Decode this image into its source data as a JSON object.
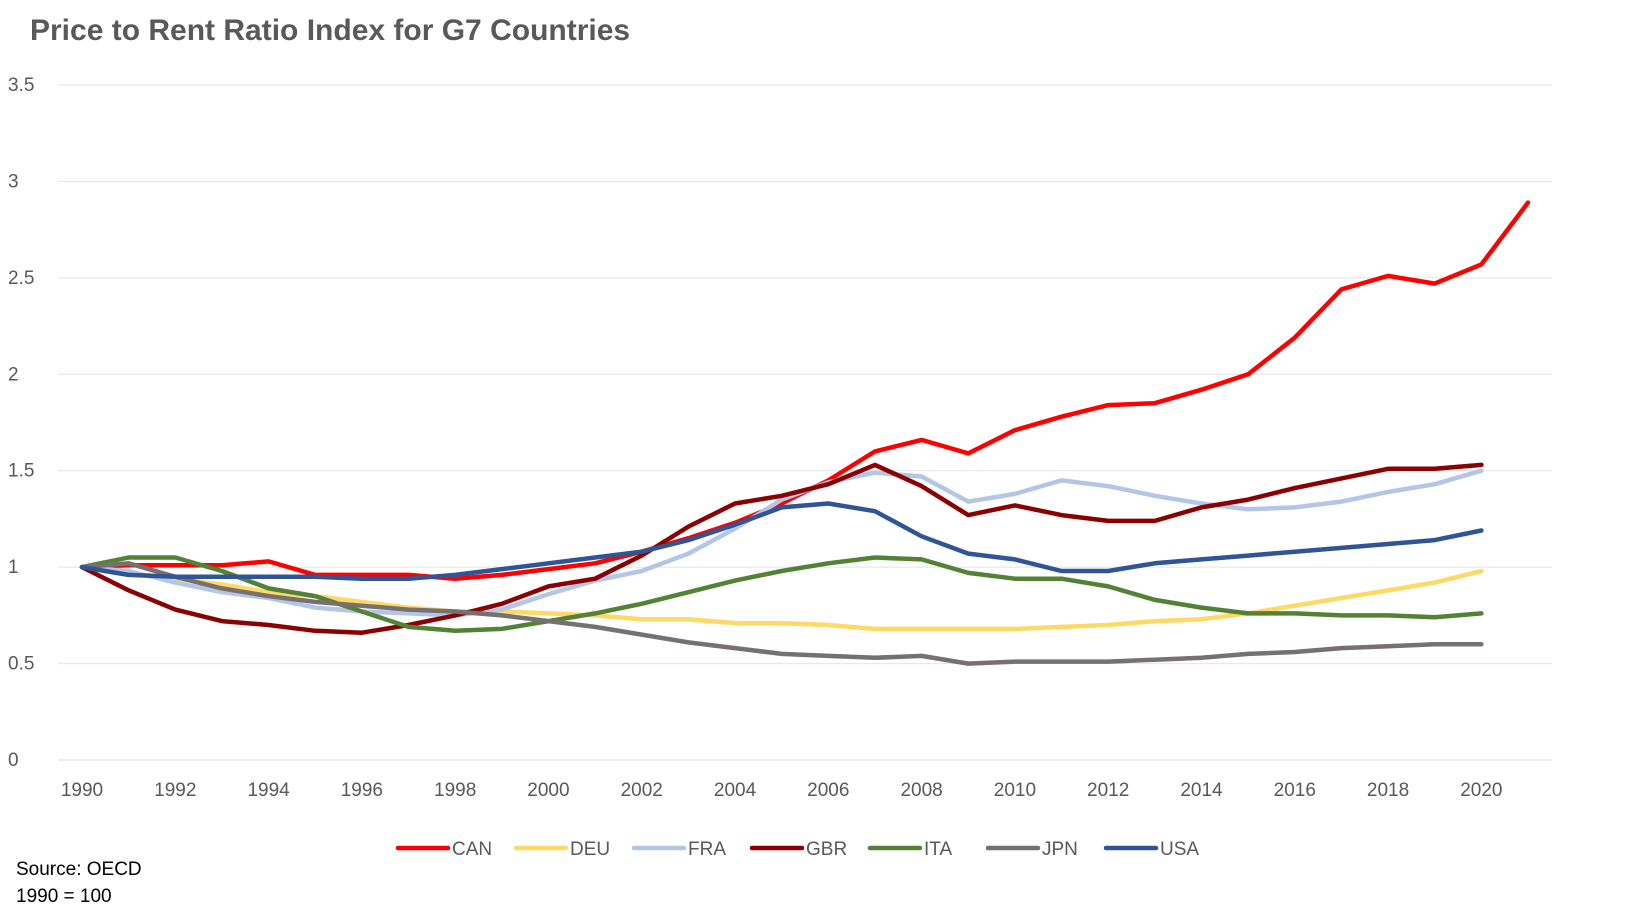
{
  "chart_data": {
    "type": "line",
    "title": "Price to Rent Ratio Index for G7 Countries",
    "xlabel": "",
    "ylabel": "",
    "ylim": [
      0,
      3.5
    ],
    "yticks": [
      0,
      0.5,
      1,
      1.5,
      2,
      2.5,
      3,
      3.5
    ],
    "ytick_labels": [
      "0",
      "0.5",
      "1",
      "1.5",
      "2",
      "2.5",
      "3",
      "3.5"
    ],
    "xlim": [
      1990,
      2021
    ],
    "xticks": [
      1990,
      1992,
      1994,
      1996,
      1998,
      2000,
      2002,
      2004,
      2006,
      2008,
      2010,
      2012,
      2014,
      2016,
      2018,
      2020
    ],
    "xtick_labels": [
      "1990",
      "1992",
      "1994",
      "1996",
      "1998",
      "2000",
      "2002",
      "2004",
      "2006",
      "2008",
      "2010",
      "2012",
      "2014",
      "2016",
      "2018",
      "2020"
    ],
    "grid": "horizontal",
    "legend_position": "bottom",
    "series": [
      {
        "name": "CAN",
        "color": "#FF0000",
        "start_year": 1990,
        "values": [
          1.0,
          1.01,
          1.01,
          1.01,
          1.03,
          0.96,
          0.96,
          0.96,
          0.94,
          0.96,
          0.99,
          1.02,
          1.08,
          1.15,
          1.23,
          1.33,
          1.45,
          1.6,
          1.66,
          1.59,
          1.71,
          1.78,
          1.84,
          1.85,
          1.92,
          2.0,
          2.19,
          2.44,
          2.51,
          2.47,
          2.57,
          2.89
        ]
      },
      {
        "name": "DEU",
        "color": "#FFD966",
        "start_year": 1990,
        "values": [
          1.0,
          0.97,
          0.94,
          0.91,
          0.87,
          0.85,
          0.82,
          0.79,
          0.77,
          0.77,
          0.76,
          0.75,
          0.73,
          0.73,
          0.71,
          0.71,
          0.7,
          0.68,
          0.68,
          0.68,
          0.68,
          0.69,
          0.7,
          0.72,
          0.73,
          0.76,
          0.8,
          0.84,
          0.88,
          0.92,
          0.98
        ]
      },
      {
        "name": "FRA",
        "color": "#B4C6E7",
        "start_year": 1990,
        "values": [
          1.0,
          0.98,
          0.92,
          0.87,
          0.84,
          0.79,
          0.77,
          0.76,
          0.75,
          0.78,
          0.86,
          0.93,
          0.98,
          1.07,
          1.2,
          1.35,
          1.44,
          1.49,
          1.47,
          1.34,
          1.38,
          1.45,
          1.42,
          1.37,
          1.33,
          1.3,
          1.31,
          1.34,
          1.39,
          1.43,
          1.5
        ]
      },
      {
        "name": "GBR",
        "color": "#8B0000",
        "start_year": 1990,
        "values": [
          1.0,
          0.88,
          0.78,
          0.72,
          0.7,
          0.67,
          0.66,
          0.7,
          0.75,
          0.81,
          0.9,
          0.94,
          1.06,
          1.21,
          1.33,
          1.37,
          1.43,
          1.53,
          1.42,
          1.27,
          1.32,
          1.27,
          1.24,
          1.24,
          1.31,
          1.35,
          1.41,
          1.46,
          1.51,
          1.51,
          1.53
        ]
      },
      {
        "name": "ITA",
        "color": "#548235",
        "start_year": 1990,
        "values": [
          1.0,
          1.05,
          1.05,
          0.98,
          0.89,
          0.85,
          0.77,
          0.69,
          0.67,
          0.68,
          0.72,
          0.76,
          0.81,
          0.87,
          0.93,
          0.98,
          1.02,
          1.05,
          1.04,
          0.97,
          0.94,
          0.94,
          0.9,
          0.83,
          0.79,
          0.76,
          0.76,
          0.75,
          0.75,
          0.74,
          0.76
        ]
      },
      {
        "name": "JPN",
        "color": "#767171",
        "start_year": 1990,
        "values": [
          1.0,
          1.02,
          0.95,
          0.89,
          0.85,
          0.82,
          0.8,
          0.78,
          0.77,
          0.75,
          0.72,
          0.69,
          0.65,
          0.61,
          0.58,
          0.55,
          0.54,
          0.53,
          0.54,
          0.5,
          0.51,
          0.51,
          0.51,
          0.52,
          0.53,
          0.55,
          0.56,
          0.58,
          0.59,
          0.6,
          0.6
        ]
      },
      {
        "name": "USA",
        "color": "#2F5597",
        "start_year": 1990,
        "values": [
          1.0,
          0.96,
          0.95,
          0.95,
          0.95,
          0.95,
          0.94,
          0.94,
          0.96,
          0.99,
          1.02,
          1.05,
          1.08,
          1.14,
          1.22,
          1.31,
          1.33,
          1.29,
          1.16,
          1.07,
          1.04,
          0.98,
          0.98,
          1.02,
          1.04,
          1.06,
          1.08,
          1.1,
          1.12,
          1.14,
          1.19
        ]
      }
    ]
  },
  "notes": {
    "source": "Source: OECD",
    "base": "1990 = 100"
  }
}
